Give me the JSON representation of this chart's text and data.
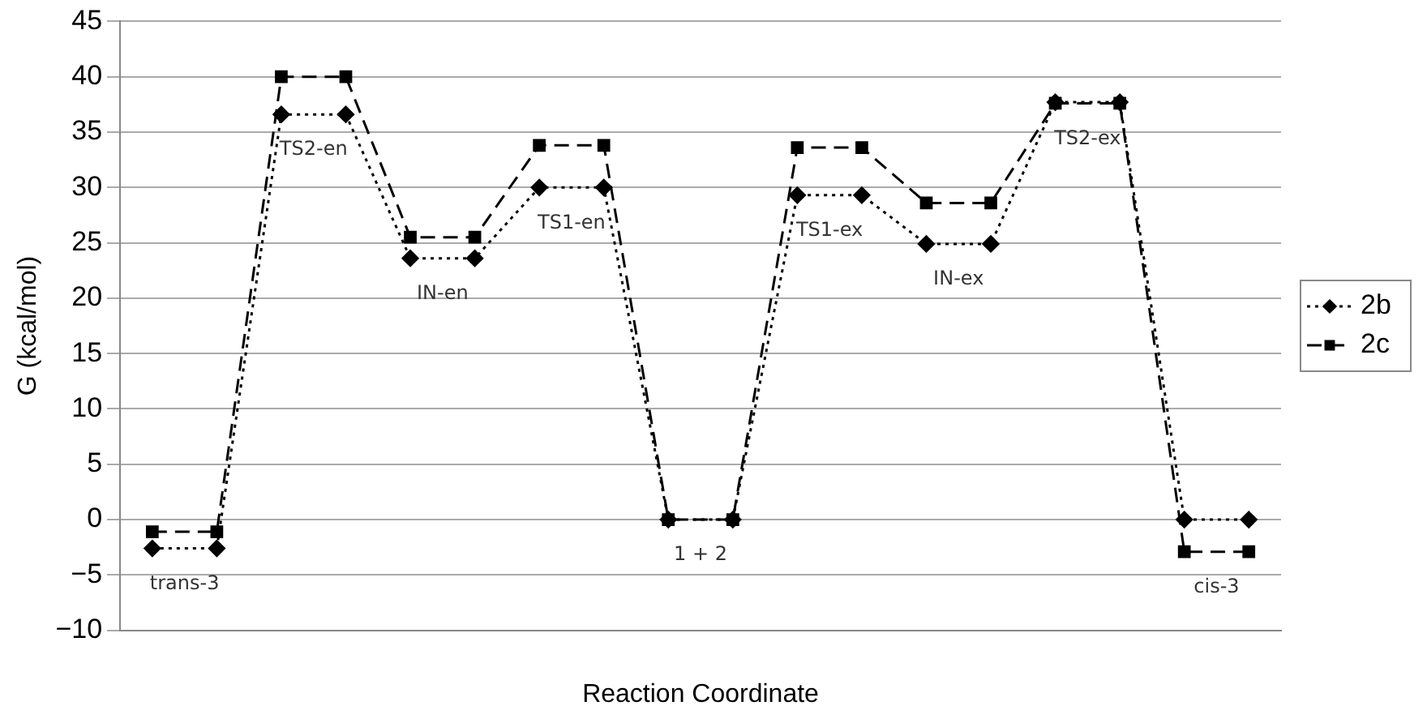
{
  "chart_data": {
    "type": "line",
    "xlabel": "Reaction Coordinate",
    "ylabel": "G (kcal/mol)",
    "categories": [
      null,
      null,
      null,
      null,
      null,
      null,
      null,
      null,
      null,
      null,
      null,
      null,
      null,
      null,
      null,
      null,
      null,
      null
    ],
    "series": [
      {
        "name": "2b",
        "color": "#000000",
        "marker": "diamond",
        "line_style": "dotted",
        "values": [
          -2.6,
          -2.6,
          36.6,
          36.6,
          23.6,
          23.6,
          30.0,
          30.0,
          0,
          0,
          29.3,
          29.3,
          24.9,
          24.9,
          37.7,
          37.7,
          0,
          0
        ]
      },
      {
        "name": "2c",
        "color": "#000000",
        "marker": "square",
        "line_style": "dashed",
        "values": [
          -1.1,
          -1.1,
          40,
          40,
          25.5,
          25.5,
          33.8,
          33.8,
          0,
          0,
          33.6,
          33.6,
          28.6,
          28.6,
          37.6,
          37.6,
          -2.9,
          -2.9
        ]
      }
    ],
    "ylim": [
      -10,
      45
    ],
    "yticks": [
      -10,
      -5,
      0,
      5,
      10,
      15,
      20,
      25,
      30,
      35,
      40,
      45
    ],
    "grid": "y",
    "legend": "right",
    "tick_labels": "y",
    "annotations": [
      "trans-3",
      "TS2-en",
      "IN-en",
      "TS1-en",
      "1 + 2",
      "TS1-ex",
      "IN-ex",
      "TS2-ex",
      "cis-3"
    ]
  }
}
